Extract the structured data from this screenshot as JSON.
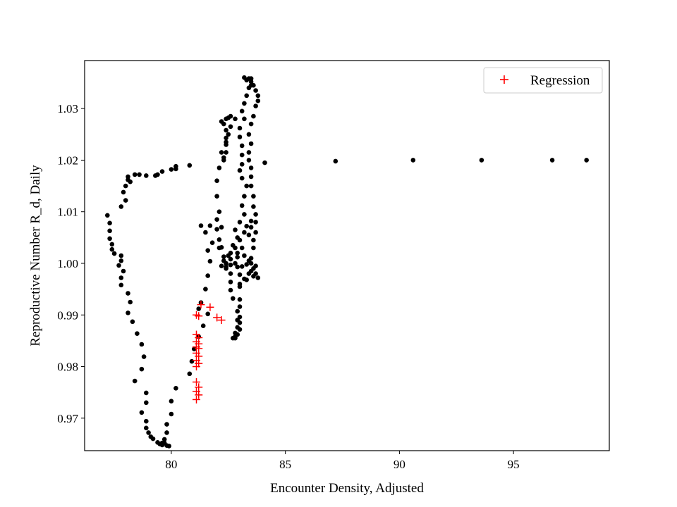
{
  "chart_data": {
    "type": "scatter",
    "xlabel": "Encounter Density, Adjusted",
    "ylabel": "Reproductive Number R_d, Daily",
    "xlim": [
      76.2,
      99.2
    ],
    "ylim": [
      0.9637,
      1.0393
    ],
    "xticks": [
      80,
      85,
      90,
      95
    ],
    "yticks": [
      0.97,
      0.98,
      0.99,
      1.0,
      1.01,
      1.02,
      1.03
    ],
    "ytick_labels": [
      "0.97",
      "0.98",
      "0.99",
      "1.00",
      "1.01",
      "1.02",
      "1.03"
    ],
    "grid": false,
    "legend": {
      "position": "top-right",
      "entries": [
        "Regression"
      ]
    },
    "series": [
      {
        "marker": "dot",
        "color": "#000000",
        "points": [
          [
            77.2,
            1.0093
          ],
          [
            77.3,
            1.0078
          ],
          [
            77.3,
            1.0063
          ],
          [
            77.3,
            1.0048
          ],
          [
            77.4,
            1.0037
          ],
          [
            77.4,
            1.0027
          ],
          [
            77.5,
            1.0019
          ],
          [
            77.8,
            1.0015
          ],
          [
            77.8,
            1.0005
          ],
          [
            77.7,
            0.9996
          ],
          [
            77.9,
            0.9985
          ],
          [
            77.8,
            0.9972
          ],
          [
            77.8,
            0.9958
          ],
          [
            78.1,
            0.9942
          ],
          [
            78.2,
            0.9925
          ],
          [
            78.1,
            0.9904
          ],
          [
            78.3,
            0.9887
          ],
          [
            78.5,
            0.9864
          ],
          [
            78.7,
            0.9843
          ],
          [
            78.8,
            0.9819
          ],
          [
            78.7,
            0.9795
          ],
          [
            78.4,
            0.9772
          ],
          [
            78.9,
            0.9749
          ],
          [
            78.9,
            0.973
          ],
          [
            78.7,
            0.9711
          ],
          [
            78.9,
            0.9694
          ],
          [
            78.9,
            0.9681
          ],
          [
            79.0,
            0.9672
          ],
          [
            79.1,
            0.9664
          ],
          [
            79.2,
            0.966
          ],
          [
            79.4,
            0.9653
          ],
          [
            79.5,
            0.965
          ],
          [
            79.6,
            0.9652
          ],
          [
            79.6,
            0.9648
          ],
          [
            79.8,
            0.9647
          ],
          [
            79.9,
            0.9646
          ],
          [
            79.7,
            0.9652
          ],
          [
            79.7,
            0.9659
          ],
          [
            79.8,
            0.9672
          ],
          [
            79.8,
            0.9688
          ],
          [
            80.0,
            0.9708
          ],
          [
            80.0,
            0.9733
          ],
          [
            80.2,
            0.9758
          ],
          [
            80.8,
            0.9786
          ],
          [
            80.9,
            0.981
          ],
          [
            81.0,
            0.9834
          ],
          [
            81.2,
            0.9858
          ],
          [
            81.4,
            0.9879
          ],
          [
            81.6,
            0.9902
          ],
          [
            81.2,
            0.9912
          ],
          [
            81.3,
            0.9924
          ],
          [
            81.5,
            0.995
          ],
          [
            81.6,
            0.9976
          ],
          [
            81.7,
            1.0004
          ],
          [
            81.6,
            1.0025
          ],
          [
            81.8,
            1.004
          ],
          [
            81.5,
            1.006
          ],
          [
            81.3,
            1.0073
          ],
          [
            81.7,
            1.0073
          ],
          [
            82.0,
            1.0066
          ],
          [
            82.1,
            1.0046
          ],
          [
            82.2,
            1.0031
          ],
          [
            82.3,
            1.0013
          ],
          [
            82.4,
            1.0
          ],
          [
            82.4,
            0.9993
          ],
          [
            82.6,
            0.9997
          ],
          [
            82.9,
            0.9993
          ],
          [
            82.8,
            1.0
          ],
          [
            82.6,
            0.998
          ],
          [
            82.6,
            0.9964
          ],
          [
            82.6,
            0.9948
          ],
          [
            82.7,
            0.9932
          ],
          [
            82.9,
            0.9907
          ],
          [
            82.9,
            0.989
          ],
          [
            82.9,
            0.9876
          ],
          [
            82.8,
            0.9865
          ],
          [
            82.8,
            0.9855
          ],
          [
            82.7,
            0.9855
          ],
          [
            82.8,
            0.9858
          ],
          [
            82.9,
            0.9862
          ],
          [
            83.0,
            0.9872
          ],
          [
            83.0,
            0.9885
          ],
          [
            83.0,
            0.9896
          ],
          [
            83.0,
            0.9916
          ],
          [
            83.0,
            0.993
          ],
          [
            83.0,
            0.9955
          ],
          [
            83.0,
            0.9978
          ],
          [
            83.1,
            0.9994
          ],
          [
            83.3,
            0.9998
          ],
          [
            83.4,
            1.0005
          ],
          [
            83.5,
            1.001
          ],
          [
            83.6,
            1.003
          ],
          [
            83.6,
            1.0045
          ],
          [
            83.7,
            1.006
          ],
          [
            83.7,
            1.008
          ],
          [
            83.7,
            1.0095
          ],
          [
            83.6,
            1.011
          ],
          [
            83.6,
            1.013
          ],
          [
            83.5,
            1.015
          ],
          [
            83.5,
            1.0168
          ],
          [
            83.5,
            1.0185
          ],
          [
            83.4,
            1.02
          ],
          [
            83.4,
            1.0215
          ],
          [
            83.5,
            1.0232
          ],
          [
            83.4,
            1.025
          ],
          [
            83.5,
            1.027
          ],
          [
            83.6,
            1.0285
          ],
          [
            83.7,
            1.0305
          ],
          [
            83.8,
            1.0315
          ],
          [
            83.8,
            1.0325
          ],
          [
            83.7,
            1.0335
          ],
          [
            83.6,
            1.0345
          ],
          [
            83.5,
            1.0352
          ],
          [
            83.4,
            1.0358
          ],
          [
            83.2,
            1.036
          ],
          [
            83.3,
            1.0355
          ],
          [
            83.5,
            1.0358
          ],
          [
            83.5,
            1.0345
          ],
          [
            83.4,
            1.034
          ],
          [
            83.3,
            1.0325
          ],
          [
            83.2,
            1.031
          ],
          [
            83.1,
            1.0295
          ],
          [
            83.2,
            1.028
          ],
          [
            83.0,
            1.0262
          ],
          [
            83.0,
            1.0245
          ],
          [
            83.1,
            1.0228
          ],
          [
            83.1,
            1.021
          ],
          [
            83.1,
            1.0192
          ],
          [
            83.0,
            1.018
          ],
          [
            83.1,
            1.0165
          ],
          [
            83.3,
            1.015
          ],
          [
            83.2,
            1.013
          ],
          [
            83.1,
            1.0112
          ],
          [
            83.2,
            1.0095
          ],
          [
            83.0,
            1.008
          ],
          [
            82.8,
            1.0065
          ],
          [
            82.9,
            1.005
          ],
          [
            82.7,
            1.0035
          ],
          [
            82.6,
            1.002
          ],
          [
            82.9,
            1.0012
          ],
          [
            83.1,
            1.003
          ],
          [
            83.4,
            1.0055
          ],
          [
            83.5,
            1.007
          ],
          [
            83.5,
            1.0082
          ],
          [
            83.3,
            1.0072
          ],
          [
            83.2,
            1.006
          ],
          [
            83.0,
            1.0045
          ],
          [
            82.8,
            1.003
          ],
          [
            82.5,
            1.0015
          ],
          [
            82.3,
            1.0005
          ],
          [
            82.2,
            0.9995
          ],
          [
            82.4,
            0.999
          ],
          [
            82.6,
            1.0008
          ],
          [
            82.9,
            1.002
          ],
          [
            83.2,
            1.0015
          ],
          [
            83.5,
            1.0
          ],
          [
            83.6,
            0.999
          ],
          [
            83.6,
            0.9975
          ],
          [
            83.8,
            0.9972
          ],
          [
            83.7,
            0.998
          ],
          [
            83.7,
            0.9995
          ],
          [
            83.4,
            0.998
          ],
          [
            83.2,
            0.997
          ],
          [
            83.0,
            0.996
          ],
          [
            83.3,
            0.9968
          ],
          [
            83.5,
            0.9985
          ],
          [
            82.1,
            1.003
          ],
          [
            82.2,
            1.007
          ],
          [
            82.0,
            1.0085
          ],
          [
            82.1,
            1.01
          ],
          [
            82.0,
            1.013
          ],
          [
            82.0,
            1.016
          ],
          [
            82.1,
            1.0185
          ],
          [
            82.3,
            1.02
          ],
          [
            82.2,
            1.0215
          ],
          [
            82.4,
            1.023
          ],
          [
            82.4,
            1.0243
          ],
          [
            82.4,
            1.0258
          ],
          [
            82.3,
            1.027
          ],
          [
            82.4,
            1.028
          ],
          [
            82.5,
            1.0282
          ],
          [
            82.6,
            1.0285
          ],
          [
            82.8,
            1.028
          ],
          [
            82.6,
            1.0265
          ],
          [
            82.5,
            1.025
          ],
          [
            82.4,
            1.0235
          ],
          [
            82.4,
            1.0215
          ],
          [
            82.3,
            1.0205
          ],
          [
            82.2,
            1.0275
          ],
          [
            80.2,
            1.0188
          ],
          [
            80.8,
            1.019
          ],
          [
            79.6,
            1.0178
          ],
          [
            79.4,
            1.0172
          ],
          [
            79.3,
            1.017
          ],
          [
            78.9,
            1.017
          ],
          [
            78.6,
            1.0172
          ],
          [
            78.4,
            1.0172
          ],
          [
            78.1,
            1.0168
          ],
          [
            78.1,
            1.0162
          ],
          [
            78.2,
            1.0158
          ],
          [
            78.0,
            1.015
          ],
          [
            77.9,
            1.0138
          ],
          [
            78.0,
            1.0122
          ],
          [
            77.8,
            1.011
          ],
          [
            80.0,
            1.0182
          ],
          [
            80.2,
            1.0183
          ],
          [
            84.1,
            1.0195
          ],
          [
            87.2,
            1.0198
          ],
          [
            90.6,
            1.02
          ],
          [
            93.6,
            1.02
          ],
          [
            96.7,
            1.02
          ],
          [
            98.2,
            1.02
          ]
        ]
      },
      {
        "name": "Regression",
        "marker": "plus",
        "color": "#ff0000",
        "points": [
          [
            81.1,
            0.99
          ],
          [
            81.2,
            0.9898
          ],
          [
            81.3,
            0.992
          ],
          [
            81.7,
            0.9915
          ],
          [
            82.0,
            0.9895
          ],
          [
            82.2,
            0.989
          ],
          [
            81.1,
            0.9862
          ],
          [
            81.2,
            0.9856
          ],
          [
            81.1,
            0.9848
          ],
          [
            81.2,
            0.9844
          ],
          [
            81.1,
            0.9838
          ],
          [
            81.2,
            0.9835
          ],
          [
            81.1,
            0.9826
          ],
          [
            81.2,
            0.982
          ],
          [
            81.1,
            0.9812
          ],
          [
            81.2,
            0.9806
          ],
          [
            81.1,
            0.98
          ],
          [
            81.1,
            0.977
          ],
          [
            81.2,
            0.976
          ],
          [
            81.1,
            0.9752
          ],
          [
            81.2,
            0.9745
          ],
          [
            81.1,
            0.9736
          ]
        ]
      }
    ]
  }
}
